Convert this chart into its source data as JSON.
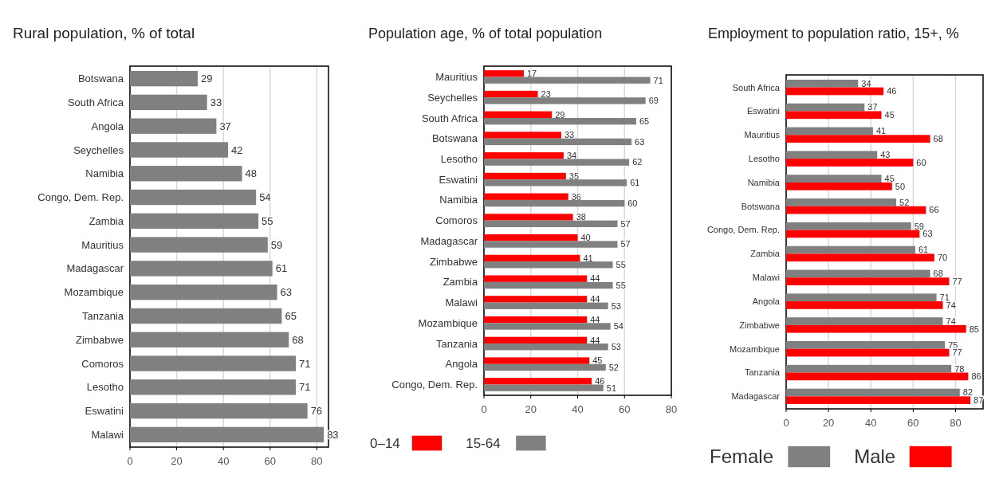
{
  "chart_data": [
    {
      "type": "bar",
      "orientation": "horizontal",
      "title": "Rural population, % of total",
      "categories": [
        "Botswana",
        "South Africa",
        "Angola",
        "Seychelles",
        "Namibia",
        "Congo, Dem. Rep.",
        "Zambia",
        "Mauritius",
        "Madagascar",
        "Mozambique",
        "Tanzania",
        "Zimbabwe",
        "Comoros",
        "Lesotho",
        "Eswatini",
        "Malawi"
      ],
      "values": [
        29,
        33,
        37,
        42,
        48,
        54,
        55,
        59,
        61,
        63,
        65,
        68,
        71,
        71,
        76,
        83
      ],
      "color": "#808080",
      "xlim": [
        0,
        85
      ],
      "xticks": [
        0,
        20,
        40,
        60,
        80
      ],
      "grid": "x",
      "data_labels": true
    },
    {
      "type": "bar",
      "orientation": "horizontal",
      "title": "Population age, % of total population",
      "categories": [
        "Mauritius",
        "Seychelles",
        "South Africa",
        "Botswana",
        "Lesotho",
        "Eswatini",
        "Namibia",
        "Comoros",
        "Madagascar",
        "Zimbabwe",
        "Zambia",
        "Malawi",
        "Mozambique",
        "Tanzania",
        "Angola",
        "Congo, Dem. Rep."
      ],
      "series": [
        {
          "name": "0–14",
          "color": "#ff0000",
          "values": [
            17,
            23,
            29,
            33,
            34,
            35,
            36,
            38,
            40,
            41,
            44,
            44,
            44,
            44,
            45,
            46
          ]
        },
        {
          "name": "15-64",
          "color": "#808080",
          "values": [
            71,
            69,
            65,
            63,
            62,
            61,
            60,
            57,
            57,
            55,
            55,
            53,
            54,
            53,
            52,
            51
          ]
        }
      ],
      "xlim": [
        0,
        80
      ],
      "xticks": [
        0,
        20,
        40,
        60,
        80
      ],
      "grid": "x",
      "data_labels": true,
      "legend": "bottom"
    },
    {
      "type": "bar",
      "orientation": "horizontal",
      "title": "Employment to population ratio, 15+, %",
      "categories": [
        "South Africa",
        "Eswatini",
        "Mauritius",
        "Lesotho",
        "Namibia",
        "Botswana",
        "Congo, Dem. Rep.",
        "Zambia",
        "Malawi",
        "Angola",
        "Zimbabwe",
        "Mozambique",
        "Tanzania",
        "Madagascar"
      ],
      "series": [
        {
          "name": "Female",
          "color": "#808080",
          "values": [
            34,
            37,
            41,
            43,
            45,
            52,
            59,
            61,
            68,
            71,
            74,
            75,
            78,
            82
          ]
        },
        {
          "name": "Male",
          "color": "#ff0000",
          "values": [
            46,
            45,
            68,
            60,
            50,
            66,
            63,
            70,
            77,
            74,
            85,
            77,
            86,
            87
          ]
        }
      ],
      "xlim": [
        0,
        93
      ],
      "xticks": [
        0,
        20,
        40,
        60,
        80
      ],
      "grid": "x",
      "data_labels": true,
      "legend": "bottom"
    }
  ]
}
